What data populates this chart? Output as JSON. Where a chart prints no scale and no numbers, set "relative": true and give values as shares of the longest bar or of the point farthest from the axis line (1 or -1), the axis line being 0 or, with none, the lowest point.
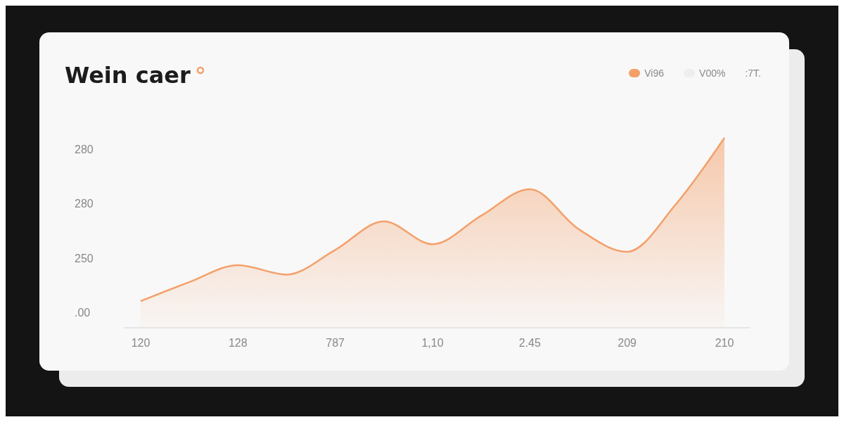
{
  "chart_data": {
    "type": "area",
    "title": "Wein caer",
    "categories": [
      "120",
      null,
      "128",
      null,
      "787",
      null,
      "1,10",
      null,
      "2.45",
      null,
      "209",
      null,
      "210"
    ],
    "relative": true,
    "series": [
      {
        "name": "Vi96",
        "color": "#f4a06a",
        "values": [
          0.14,
          0.24,
          0.33,
          0.28,
          0.41,
          0.56,
          0.44,
          0.59,
          0.73,
          0.52,
          0.4,
          0.65,
          1
        ]
      },
      {
        "name": "V00%",
        "color": "#eeeeee",
        "values": [
          null,
          null,
          null,
          null,
          null,
          null,
          null,
          null,
          null,
          null,
          null,
          null,
          null
        ]
      }
    ],
    "legend": "top right",
    "annotations": [
      ":7T.",
      "280",
      "280",
      "250",
      ".00"
    ]
  }
}
